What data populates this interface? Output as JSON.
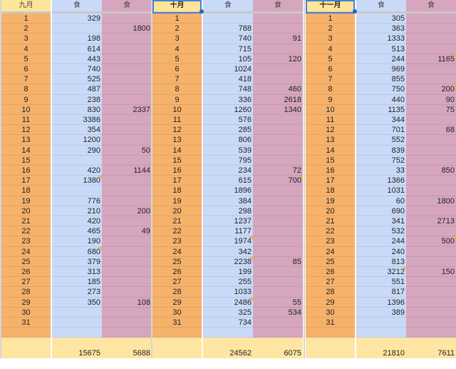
{
  "colors": {
    "day_col": "#f6b26b",
    "col1": "#c9daf8",
    "col2": "#d5a6bd",
    "header": "#ffe599",
    "total": "#fee6a2",
    "note_marker": "#f0b428",
    "selection": "#1a66d2"
  },
  "blocks": [
    {
      "month": "九月",
      "col1_header": "食",
      "col2_header": "食",
      "days": [
        "1",
        "2",
        "3",
        "4",
        "5",
        "6",
        "7",
        "8",
        "9",
        "10",
        "11",
        "12",
        "13",
        "14",
        "15",
        "16",
        "17",
        "18",
        "19",
        "20",
        "21",
        "22",
        "23",
        "24",
        "25",
        "26",
        "27",
        "28",
        "29",
        "30",
        "31"
      ],
      "col1": [
        "329",
        "",
        "198",
        "614",
        "443",
        "740",
        "525",
        "487",
        "238",
        "830",
        "3386",
        "354",
        "1200",
        "290",
        "",
        "420",
        "1380",
        "",
        "776",
        "210",
        "420",
        "465",
        "190",
        "680",
        "379",
        "313",
        "185",
        "273",
        "350",
        "",
        ""
      ],
      "col2": [
        "",
        "1800",
        "",
        "",
        "",
        "",
        "",
        "",
        "",
        "2337",
        "",
        "",
        "",
        "50",
        "",
        "1144",
        "",
        "",
        "",
        "200",
        "",
        "49",
        "",
        "",
        "",
        "",
        "",
        "",
        "108",
        "",
        ""
      ],
      "col1_notes": [
        17,
        24
      ],
      "col2_notes": [
        10,
        20
      ],
      "col1_total": "15675",
      "col2_total": "5688",
      "selected": false
    },
    {
      "month": "十月",
      "col1_header": "食",
      "col2_header": "食",
      "days": [
        "1",
        "2",
        "3",
        "4",
        "5",
        "6",
        "7",
        "8",
        "9",
        "10",
        "11",
        "12",
        "13",
        "14",
        "15",
        "16",
        "17",
        "18",
        "19",
        "20",
        "21",
        "22",
        "23",
        "24",
        "25",
        "26",
        "27",
        "28",
        "29",
        "30",
        "31"
      ],
      "col1": [
        "",
        "788",
        "740",
        "715",
        "105",
        "1024",
        "418",
        "748",
        "336",
        "1260",
        "576",
        "285",
        "806",
        "539",
        "795",
        "234",
        "615",
        "1896",
        "384",
        "298",
        "1237",
        "1177",
        "1974",
        "342",
        "2238",
        "199",
        "255",
        "1033",
        "2486",
        "325",
        "734"
      ],
      "col2": [
        "",
        "",
        "91",
        "",
        "120",
        "",
        "",
        "460",
        "2618",
        "1340",
        "",
        "",
        "",
        "",
        "",
        "72",
        "700",
        "",
        "",
        "",
        "",
        "",
        "",
        "",
        "85",
        "",
        "",
        "",
        "55",
        "534",
        ""
      ],
      "col1_notes": [
        23,
        25,
        29
      ],
      "col2_notes": [
        17
      ],
      "col1_total": "24562",
      "col2_total": "6075",
      "selected": true
    },
    {
      "month": "十一月",
      "col1_header": "食",
      "col2_header": "食",
      "days": [
        "1",
        "2",
        "3",
        "4",
        "5",
        "6",
        "7",
        "8",
        "9",
        "10",
        "11",
        "12",
        "13",
        "14",
        "15",
        "16",
        "17",
        "18",
        "19",
        "20",
        "21",
        "22",
        "23",
        "24",
        "25",
        "26",
        "27",
        "28",
        "29",
        "30",
        "31"
      ],
      "col1": [
        "305",
        "363",
        "1333",
        "513",
        "244",
        "969",
        "855",
        "750",
        "440",
        "1135",
        "344",
        "701",
        "552",
        "839",
        "752",
        "33",
        "1366",
        "1031",
        "60",
        "690",
        "341",
        "532",
        "244",
        "240",
        "813",
        "3212",
        "551",
        "817",
        "1396",
        "389",
        ""
      ],
      "col2": [
        "",
        "",
        "",
        "",
        "1165",
        "",
        "",
        "200",
        "90",
        "75",
        "",
        "68",
        "",
        "",
        "",
        "850",
        "",
        "",
        "1800",
        "",
        "2713",
        "",
        "500",
        "",
        "",
        "150",
        "",
        "",
        "",
        "",
        ""
      ],
      "col1_notes": [
        26
      ],
      "col2_notes": [
        5,
        8,
        23
      ],
      "col1_total": "21810",
      "col2_total": "7611",
      "selected": true
    }
  ]
}
